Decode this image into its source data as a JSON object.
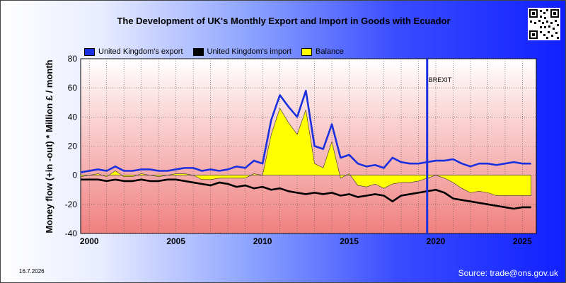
{
  "chart_data": {
    "type": "line",
    "title": "The Development of UK's Monthly Export and Import in Goods with Ecuador",
    "ylabel": "Money flow (+in -out) * Million £ / month",
    "xlabel": "",
    "ylim": [
      -40,
      80
    ],
    "xlim": [
      1999.5,
      2025.8
    ],
    "y_ticks": [
      -40,
      -20,
      0,
      20,
      40,
      60,
      80
    ],
    "x_ticks": [
      2000,
      2005,
      2010,
      2015,
      2020,
      2025
    ],
    "grid": true,
    "legend_position": "top",
    "annotations": [
      {
        "text": "BREXIT",
        "x": 2019.5
      }
    ],
    "series": [
      {
        "name": "United Kingdom's export",
        "color": "#1a2fe0",
        "x_start": 1999.5,
        "x_step": 0.5,
        "values": [
          2,
          3,
          4,
          3,
          6,
          3,
          3,
          4,
          4,
          3,
          3,
          4,
          5,
          5,
          3,
          4,
          3,
          4,
          6,
          5,
          10,
          8,
          38,
          55,
          47,
          40,
          58,
          20,
          18,
          35,
          12,
          14,
          8,
          6,
          7,
          5,
          12,
          9,
          8,
          8,
          9,
          10,
          10,
          11,
          8,
          6,
          8,
          8,
          7,
          8,
          9,
          8,
          8
        ]
      },
      {
        "name": "United Kingdom's import",
        "color": "#000000",
        "x_start": 1999.5,
        "x_step": 0.5,
        "values": [
          -3,
          -3,
          -3,
          -4,
          -3,
          -4,
          -4,
          -3,
          -4,
          -4,
          -3,
          -3,
          -4,
          -5,
          -6,
          -7,
          -5,
          -6,
          -8,
          -7,
          -9,
          -8,
          -10,
          -9,
          -11,
          -12,
          -13,
          -12,
          -13,
          -12,
          -14,
          -13,
          -15,
          -14,
          -13,
          -14,
          -18,
          -14,
          -13,
          -12,
          -11,
          -10,
          -12,
          -16,
          -17,
          -18,
          -19,
          -20,
          -21,
          -22,
          -23,
          -22,
          -22
        ]
      },
      {
        "name": "Balance",
        "color": "#ffff00",
        "x_start": 1999.5,
        "x_step": 0.5,
        "values": [
          -1,
          0,
          1,
          -1,
          3,
          -1,
          -1,
          1,
          0,
          -1,
          0,
          1,
          1,
          0,
          -3,
          -3,
          -2,
          -2,
          -2,
          -2,
          1,
          0,
          28,
          46,
          36,
          28,
          45,
          8,
          5,
          23,
          -2,
          1,
          -7,
          -8,
          -6,
          -9,
          -6,
          -5,
          -5,
          -4,
          -2,
          0,
          -2,
          -5,
          -9,
          -12,
          -11,
          -12,
          -14,
          -14,
          -14,
          -14,
          -14
        ]
      }
    ]
  },
  "footer": {
    "date": "16.7.2026",
    "source": "Source: trade@ons.gov.uk"
  }
}
